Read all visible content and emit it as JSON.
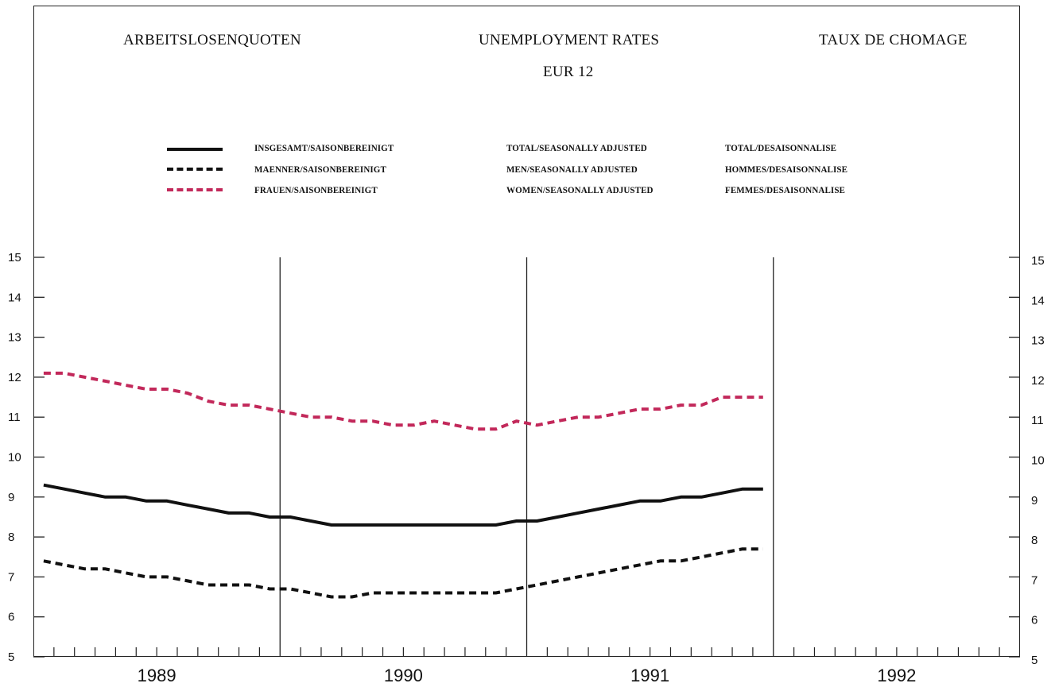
{
  "titles": {
    "de": "ARBEITSLOSENQUOTEN",
    "en": "UNEMPLOYMENT RATES",
    "fr": "TAUX DE CHOMAGE",
    "subtitle": "EUR 12"
  },
  "legend": [
    {
      "de": "INSGESAMT/SAISONBEREINIGT",
      "en": "TOTAL/SEASONALLY ADJUSTED",
      "fr": "TOTAL/DESAISONNALISE",
      "style": "solid",
      "color": "#111111"
    },
    {
      "de": "MAENNER/SAISONBEREINIGT",
      "en": "MEN/SEASONALLY ADJUSTED",
      "fr": "HOMMES/DESAISONNALISE",
      "style": "dashed",
      "color": "#111111"
    },
    {
      "de": "FRAUEN/SAISONBEREINIGT",
      "en": "WOMEN/SEASONALLY ADJUSTED",
      "fr": "FEMMES/DESAISONNALISE",
      "style": "dashed",
      "color": "#c2285a"
    }
  ],
  "chart_data": {
    "type": "line",
    "title": "UNEMPLOYMENT RATES",
    "subtitle": "EUR 12",
    "ylim": [
      5,
      15
    ],
    "yticks": [
      5,
      6,
      7,
      8,
      9,
      10,
      11,
      12,
      13,
      14,
      15
    ],
    "years": [
      "1989",
      "1990",
      "1991",
      "1992"
    ],
    "months_per_year": 12,
    "x_unit": "month (Jan 1989 = 1)",
    "series": [
      {
        "name": "INSGESAMT/SAISONBEREINIGT",
        "style": "solid",
        "color": "#111111",
        "values": [
          9.3,
          9.2,
          9.1,
          9.0,
          9.0,
          8.9,
          8.9,
          8.8,
          8.7,
          8.6,
          8.6,
          8.5,
          8.5,
          8.4,
          8.3,
          8.3,
          8.3,
          8.3,
          8.3,
          8.3,
          8.3,
          8.3,
          8.3,
          8.4,
          8.4,
          8.5,
          8.6,
          8.7,
          8.8,
          8.9,
          8.9,
          9.0,
          9.0,
          9.1,
          9.2,
          9.2
        ]
      },
      {
        "name": "MAENNER/SAISONBEREINIGT",
        "style": "dashed",
        "color": "#111111",
        "values": [
          7.4,
          7.3,
          7.2,
          7.2,
          7.1,
          7.0,
          7.0,
          6.9,
          6.8,
          6.8,
          6.8,
          6.7,
          6.7,
          6.6,
          6.5,
          6.5,
          6.6,
          6.6,
          6.6,
          6.6,
          6.6,
          6.6,
          6.6,
          6.7,
          6.8,
          6.9,
          7.0,
          7.1,
          7.2,
          7.3,
          7.4,
          7.4,
          7.5,
          7.6,
          7.7,
          7.7
        ]
      },
      {
        "name": "FRAUEN/SAISONBEREINIGT",
        "style": "dashed",
        "color": "#c2285a",
        "values": [
          12.1,
          12.1,
          12.0,
          11.9,
          11.8,
          11.7,
          11.7,
          11.6,
          11.4,
          11.3,
          11.3,
          11.2,
          11.1,
          11.0,
          11.0,
          10.9,
          10.9,
          10.8,
          10.8,
          10.9,
          10.8,
          10.7,
          10.7,
          10.9,
          10.8,
          10.9,
          11.0,
          11.0,
          11.1,
          11.2,
          11.2,
          11.3,
          11.3,
          11.5,
          11.5,
          11.5
        ]
      }
    ]
  }
}
